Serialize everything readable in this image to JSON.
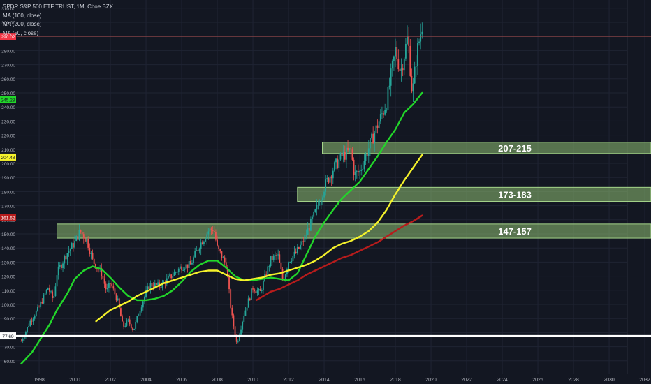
{
  "header": {
    "title": "SPDR S&P 500 ETF TRUST, 1M, Cboe BZX",
    "indicators": [
      "MA (100, close)",
      "MA (200, close)",
      "MA (50, close)"
    ]
  },
  "colors": {
    "background": "#131722",
    "grid": "#1f2433",
    "axis_text": "#b2b5be",
    "candle_up": "#26a69a",
    "candle_down": "#ef5350",
    "ma100": "#f5f22b",
    "ma200": "#b71c1c",
    "ma50": "#22d62a",
    "zone_fill": "#8fbf73",
    "zone_stroke": "#a5d58a",
    "support_line": "#ffffff",
    "price_line": "#b2504f"
  },
  "chart_data": {
    "type": "candlestick",
    "symbol": "SPDR S&P 500 ETF TRUST",
    "interval": "1M",
    "exchange": "Cboe BZX",
    "x_tick_labels": [
      "1998",
      "2000",
      "2002",
      "2004",
      "2006",
      "2008",
      "2010",
      "2012",
      "2014",
      "2016",
      "2018",
      "2020",
      "2022",
      "2024",
      "2026",
      "2028",
      "2030",
      "2032"
    ],
    "y_tick_labels": [
      "60.00",
      "70.00",
      "80.00",
      "90.00",
      "100.00",
      "110.00",
      "120.00",
      "130.00",
      "140.00",
      "150.00",
      "160.00",
      "170.00",
      "180.00",
      "190.00",
      "200.00",
      "210.00",
      "220.00",
      "230.00",
      "240.00",
      "250.00",
      "260.00",
      "270.00",
      "280.00",
      "290.00",
      "300.00",
      "310.00"
    ],
    "x_range": [
      1996.9,
      2033.0
    ],
    "y_range": [
      55,
      315
    ],
    "price_path": [
      [
        1997.0,
        74
      ],
      [
        1997.5,
        88
      ],
      [
        1998.0,
        98
      ],
      [
        1998.5,
        112
      ],
      [
        1998.8,
        103
      ],
      [
        1999.0,
        122
      ],
      [
        1999.5,
        135
      ],
      [
        2000.0,
        144
      ],
      [
        2000.3,
        152
      ],
      [
        2000.7,
        145
      ],
      [
        2001.0,
        131
      ],
      [
        2001.5,
        122
      ],
      [
        2001.8,
        109
      ],
      [
        2002.0,
        115
      ],
      [
        2002.4,
        103
      ],
      [
        2002.7,
        84
      ],
      [
        2003.0,
        88
      ],
      [
        2003.3,
        82
      ],
      [
        2003.8,
        102
      ],
      [
        2004.2,
        114
      ],
      [
        2004.8,
        113
      ],
      [
        2005.5,
        121
      ],
      [
        2006.0,
        127
      ],
      [
        2006.5,
        128
      ],
      [
        2007.0,
        142
      ],
      [
        2007.5,
        152
      ],
      [
        2007.8,
        154
      ],
      [
        2008.0,
        140
      ],
      [
        2008.5,
        128
      ],
      [
        2008.8,
        93
      ],
      [
        2009.1,
        72
      ],
      [
        2009.5,
        93
      ],
      [
        2010.0,
        112
      ],
      [
        2010.4,
        108
      ],
      [
        2011.0,
        132
      ],
      [
        2011.4,
        135
      ],
      [
        2011.7,
        116
      ],
      [
        2012.0,
        131
      ],
      [
        2012.4,
        136
      ],
      [
        2012.8,
        144
      ],
      [
        2013.0,
        150
      ],
      [
        2013.5,
        165
      ],
      [
        2014.0,
        183
      ],
      [
        2014.5,
        196
      ],
      [
        2015.0,
        205
      ],
      [
        2015.5,
        209
      ],
      [
        2015.7,
        192
      ],
      [
        2016.0,
        194
      ],
      [
        2016.5,
        211
      ],
      [
        2017.0,
        227
      ],
      [
        2017.5,
        243
      ],
      [
        2018.0,
        280
      ],
      [
        2018.3,
        265
      ],
      [
        2018.7,
        290
      ],
      [
        2018.95,
        248
      ],
      [
        2019.2,
        278
      ],
      [
        2019.5,
        298
      ]
    ],
    "series": [
      {
        "name": "MA (50, close)",
        "points": [
          [
            1997.0,
            58
          ],
          [
            1997.6,
            66
          ],
          [
            1998.0,
            74
          ],
          [
            1998.6,
            86
          ],
          [
            1999.0,
            96
          ],
          [
            1999.6,
            108
          ],
          [
            2000.0,
            118
          ],
          [
            2000.5,
            124
          ],
          [
            2001.0,
            127
          ],
          [
            2001.5,
            125
          ],
          [
            2002.0,
            119
          ],
          [
            2002.5,
            112
          ],
          [
            2003.0,
            106
          ],
          [
            2003.5,
            103
          ],
          [
            2004.0,
            103
          ],
          [
            2004.5,
            104
          ],
          [
            2005.0,
            106
          ],
          [
            2005.5,
            110
          ],
          [
            2006.0,
            116
          ],
          [
            2006.5,
            123
          ],
          [
            2007.0,
            128
          ],
          [
            2007.5,
            131
          ],
          [
            2008.0,
            131
          ],
          [
            2008.5,
            126
          ],
          [
            2009.0,
            120
          ],
          [
            2009.5,
            117
          ],
          [
            2010.0,
            117
          ],
          [
            2010.5,
            118
          ],
          [
            2011.0,
            119
          ],
          [
            2011.5,
            118
          ],
          [
            2012.0,
            117
          ],
          [
            2012.5,
            122
          ],
          [
            2013.0,
            135
          ],
          [
            2013.5,
            148
          ],
          [
            2014.0,
            158
          ],
          [
            2014.5,
            167
          ],
          [
            2015.0,
            175
          ],
          [
            2015.5,
            181
          ],
          [
            2016.0,
            187
          ],
          [
            2016.5,
            196
          ],
          [
            2017.0,
            205
          ],
          [
            2017.5,
            215
          ],
          [
            2018.0,
            224
          ],
          [
            2018.5,
            236
          ],
          [
            2019.0,
            242
          ],
          [
            2019.5,
            250
          ]
        ]
      },
      {
        "name": "MA (100, close)",
        "points": [
          [
            2001.2,
            88
          ],
          [
            2001.5,
            91
          ],
          [
            2002.0,
            96
          ],
          [
            2002.5,
            99
          ],
          [
            2003.0,
            102
          ],
          [
            2003.5,
            106
          ],
          [
            2004.0,
            109
          ],
          [
            2004.5,
            112
          ],
          [
            2005.0,
            115
          ],
          [
            2005.5,
            117
          ],
          [
            2006.0,
            119
          ],
          [
            2006.5,
            121
          ],
          [
            2007.0,
            123
          ],
          [
            2007.5,
            124
          ],
          [
            2008.0,
            124
          ],
          [
            2008.5,
            121
          ],
          [
            2009.0,
            118
          ],
          [
            2009.5,
            117
          ],
          [
            2010.0,
            118
          ],
          [
            2010.5,
            119
          ],
          [
            2011.0,
            121
          ],
          [
            2011.5,
            122
          ],
          [
            2012.0,
            124
          ],
          [
            2012.5,
            126
          ],
          [
            2013.0,
            128
          ],
          [
            2013.5,
            131
          ],
          [
            2014.0,
            135
          ],
          [
            2014.5,
            140
          ],
          [
            2015.0,
            143
          ],
          [
            2015.5,
            145
          ],
          [
            2016.0,
            148
          ],
          [
            2016.5,
            152
          ],
          [
            2017.0,
            158
          ],
          [
            2017.5,
            167
          ],
          [
            2018.0,
            178
          ],
          [
            2018.5,
            188
          ],
          [
            2019.0,
            197
          ],
          [
            2019.5,
            206
          ]
        ]
      },
      {
        "name": "MA (200, close)",
        "points": [
          [
            2010.2,
            103
          ],
          [
            2010.6,
            106
          ],
          [
            2011.0,
            109
          ],
          [
            2011.5,
            111
          ],
          [
            2012.0,
            114
          ],
          [
            2012.5,
            117
          ],
          [
            2013.0,
            121
          ],
          [
            2013.5,
            124
          ],
          [
            2014.0,
            127
          ],
          [
            2014.5,
            130
          ],
          [
            2015.0,
            133
          ],
          [
            2015.5,
            135
          ],
          [
            2016.0,
            138
          ],
          [
            2016.5,
            141
          ],
          [
            2017.0,
            144
          ],
          [
            2017.5,
            148
          ],
          [
            2018.0,
            152
          ],
          [
            2018.5,
            156
          ],
          [
            2019.0,
            159
          ],
          [
            2019.5,
            163
          ]
        ]
      }
    ],
    "zones": [
      {
        "label": "207-215",
        "low": 207,
        "high": 215,
        "from": 2013.9
      },
      {
        "label": "173-183",
        "low": 173,
        "high": 183,
        "from": 2012.5
      },
      {
        "label": "147-157",
        "low": 147,
        "high": 157,
        "from": 1999.0
      }
    ],
    "support_level": {
      "value": 77.69,
      "label": "77.69"
    },
    "last_price": {
      "value": 290.02,
      "label": "290.02"
    },
    "price_markers": [
      {
        "label": "245.28",
        "value": 245.28,
        "color": "#22d62a",
        "text_color": "#131722"
      },
      {
        "label": "204.48",
        "value": 204.48,
        "color": "#f5f22b",
        "text_color": "#131722"
      },
      {
        "label": "161.62",
        "value": 161.62,
        "color": "#b71c1c",
        "text_color": "#ffffff"
      }
    ]
  }
}
